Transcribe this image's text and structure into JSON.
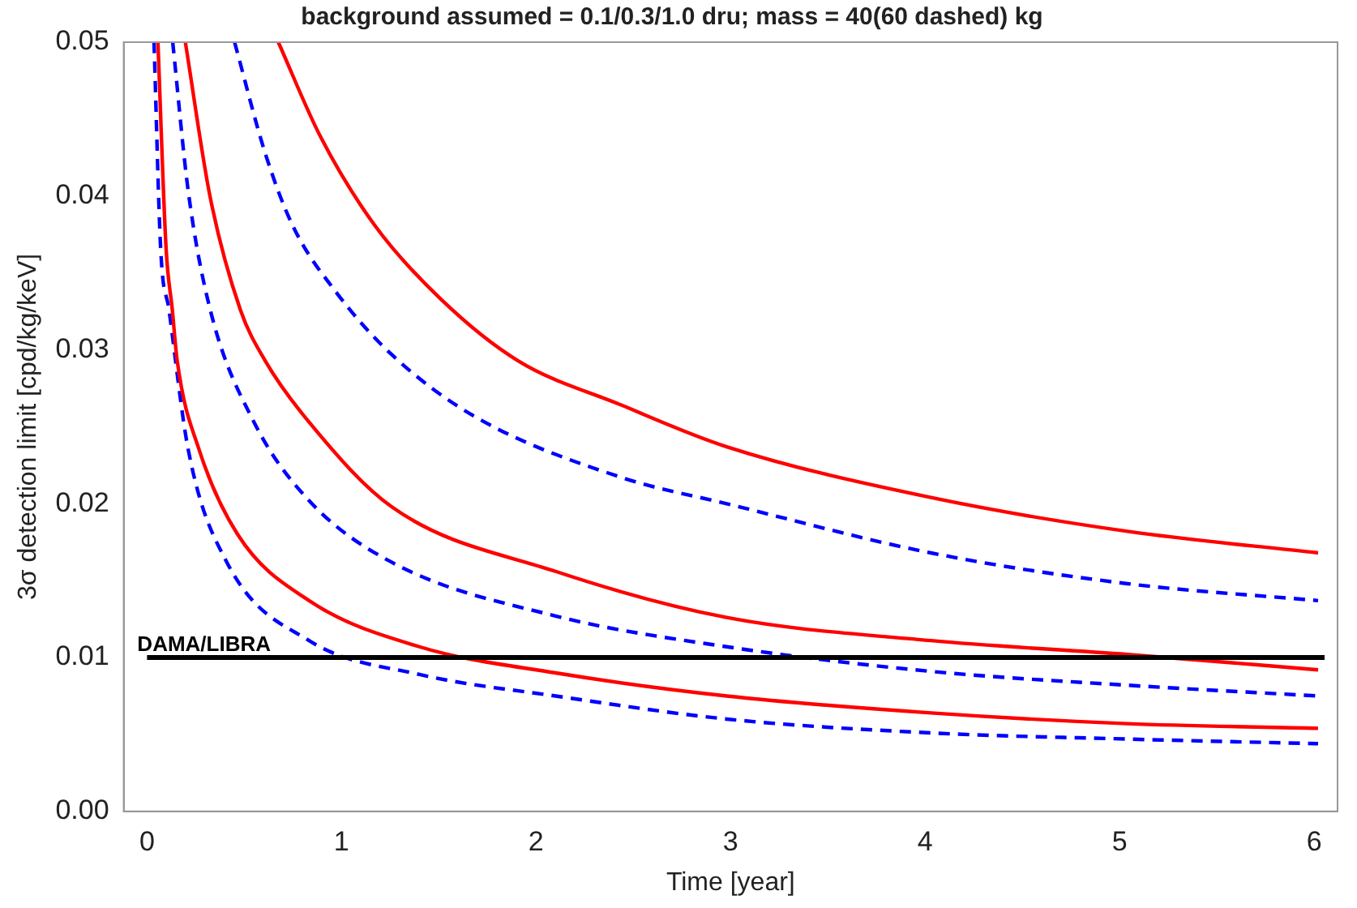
{
  "chart_data": {
    "type": "line",
    "title": "background assumed = 0.1/0.3/1.0 dru; mass = 40(60 dashed) kg",
    "xlabel": "Time [year]",
    "ylabel": "3σ detection limit [cpd/kg/keV]",
    "xlim": [
      -0.12,
      6.12
    ],
    "xticks": [
      0,
      1,
      2,
      3,
      4,
      5,
      6
    ],
    "ylim": [
      0,
      0.05
    ],
    "yticks": [
      {
        "value": 0,
        "label": "0.00"
      },
      {
        "value": 0.01,
        "label": "0.01"
      },
      {
        "value": 0.02,
        "label": "0.02"
      },
      {
        "value": 0.03,
        "label": "0.03"
      },
      {
        "value": 0.04,
        "label": "0.04"
      },
      {
        "value": 0.05,
        "label": "0.05"
      }
    ],
    "grid": false,
    "legend": false,
    "marker": "none",
    "ref_lines": [
      {
        "axis": "y",
        "value": 0.01,
        "label": "DAMA/LIBRA",
        "color": "#000000"
      }
    ],
    "series": [
      {
        "color": "#ff0000",
        "line_style": "solid",
        "x": [
          0.675,
          0.89,
          1.17,
          1.51,
          1.906,
          2.44,
          2.98,
          4.03,
          5.04,
          6.02
        ],
        "values": [
          0.05,
          0.0439,
          0.0381,
          0.0333,
          0.0293,
          0.0264,
          0.0237,
          0.0204,
          0.0182,
          0.0168
        ]
      },
      {
        "color": "#0000ff",
        "line_style": "dashed",
        "x": [
          0.45,
          0.607,
          0.748,
          0.975,
          1.257,
          1.68,
          2.44,
          2.98,
          4.03,
          5.04,
          6.02
        ],
        "values": [
          0.05,
          0.0428,
          0.0381,
          0.0337,
          0.0297,
          0.0257,
          0.0217,
          0.02,
          0.0168,
          0.0148,
          0.0137
        ]
      },
      {
        "color": "#ff0000",
        "line_style": "solid",
        "x": [
          0.197,
          0.325,
          0.48,
          0.607,
          0.833,
          1.257,
          2.1,
          2.98,
          4.03,
          5.04,
          6.02
        ],
        "values": [
          0.05,
          0.0399,
          0.0326,
          0.0293,
          0.0253,
          0.0198,
          0.0156,
          0.0126,
          0.0111,
          0.0102,
          0.0092
        ]
      },
      {
        "color": "#0000ff",
        "line_style": "dashed",
        "x": [
          0.132,
          0.212,
          0.325,
          0.55,
          0.833,
          1.257,
          2.1,
          2.98,
          4.03,
          5.04,
          6.02
        ],
        "values": [
          0.05,
          0.0403,
          0.0326,
          0.0253,
          0.0202,
          0.0162,
          0.0127,
          0.0107,
          0.0091,
          0.0082,
          0.0075
        ]
      },
      {
        "color": "#ff0000",
        "line_style": "solid",
        "x": [
          0.056,
          0.098,
          0.13,
          0.155,
          0.268,
          0.466,
          0.833,
          1.4,
          2.1,
          2.98,
          4.03,
          5.04,
          6.02
        ],
        "values": [
          0.05,
          0.0366,
          0.0326,
          0.0293,
          0.0235,
          0.018,
          0.0137,
          0.0107,
          0.009,
          0.0075,
          0.0064,
          0.0057,
          0.0054
        ]
      },
      {
        "color": "#0000ff",
        "line_style": "dashed",
        "x": [
          0.036,
          0.07,
          0.113,
          0.212,
          0.41,
          0.833,
          1.4,
          2.1,
          2.98,
          4.03,
          5.04,
          6.02
        ],
        "values": [
          0.05,
          0.0366,
          0.0326,
          0.0235,
          0.0162,
          0.0111,
          0.0089,
          0.0075,
          0.006,
          0.0051,
          0.0047,
          0.0044
        ]
      }
    ]
  }
}
